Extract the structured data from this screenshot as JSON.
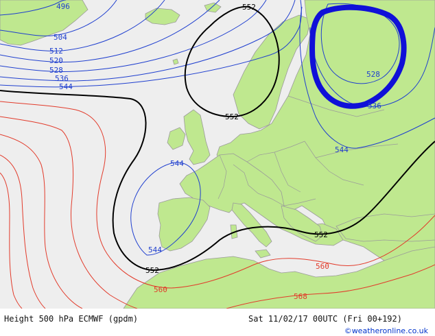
{
  "map": {
    "colors": {
      "sea": "#eeeeee",
      "land": "#bfe88f",
      "border": "#9a9a9a",
      "contour_low": "#1f3fcf",
      "contour_552": "#000000",
      "contour_high": "#e23a2a",
      "highlight": "#1010d8"
    },
    "labels": {
      "c496": "496",
      "c504": "504",
      "c512": "512",
      "c520": "520",
      "c528_w": "528",
      "c536_w": "536",
      "c544_w": "544",
      "c552_top": "552",
      "c552_mid": "552",
      "c528_e": "528",
      "c536_e": "536",
      "c544_e": "544",
      "c544_iberia_n": "544",
      "c544_iberia_s": "544",
      "c552_sw": "552",
      "c552_se": "552",
      "c560_e": "560",
      "c560_w": "560",
      "c568": "568"
    }
  },
  "footer": {
    "title": "Height 500 hPa ECMWF (gpdm)",
    "valid_time": "Sat 11/02/17 00UTC (Fri 00+192)",
    "credit": "©weatheronline.co.uk"
  }
}
